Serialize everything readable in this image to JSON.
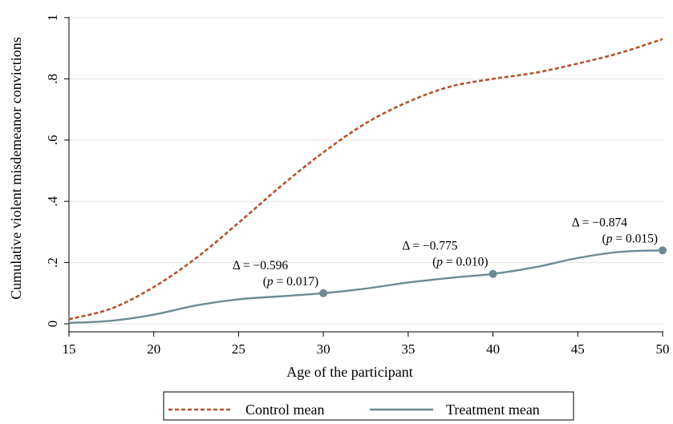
{
  "chart_data": {
    "type": "line",
    "xlabel": "Age of the participant",
    "ylabel": "Cumulative violent misdemeanor convictions",
    "xlim": [
      15,
      50
    ],
    "ylim": [
      0,
      1
    ],
    "x_ticks": [
      15,
      20,
      25,
      30,
      35,
      40,
      45,
      50
    ],
    "x_tick_labels": [
      "15",
      "20",
      "25",
      "30",
      "35",
      "40",
      "45",
      "50"
    ],
    "y_ticks": [
      0,
      0.2,
      0.4,
      0.6,
      0.8,
      1
    ],
    "y_tick_labels": [
      "0",
      ".2",
      ".4",
      ".6",
      ".8",
      "1"
    ],
    "grid": "horizontal",
    "legend_position": "bottom",
    "series": [
      {
        "name": "Control mean",
        "color": "#b5532a",
        "style": "dashed",
        "x": [
          15,
          17.5,
          20,
          22.5,
          25,
          27.5,
          30,
          32.5,
          35,
          37.5,
          40,
          42.5,
          45,
          47.5,
          50
        ],
        "y": [
          0.015,
          0.05,
          0.12,
          0.215,
          0.33,
          0.45,
          0.56,
          0.655,
          0.725,
          0.775,
          0.8,
          0.82,
          0.85,
          0.885,
          0.93
        ]
      },
      {
        "name": "Treatment mean",
        "color": "#6e8a94",
        "style": "solid",
        "x": [
          15,
          17.5,
          20,
          22.5,
          25,
          27.5,
          30,
          32.5,
          35,
          37.5,
          40,
          42.5,
          45,
          47.5,
          50
        ],
        "y": [
          0.003,
          0.01,
          0.03,
          0.06,
          0.08,
          0.09,
          0.1,
          0.115,
          0.135,
          0.15,
          0.163,
          0.185,
          0.215,
          0.235,
          0.24
        ]
      }
    ],
    "markers": [
      {
        "x": 30,
        "y": 0.1
      },
      {
        "x": 40,
        "y": 0.163
      },
      {
        "x": 50,
        "y": 0.24
      }
    ],
    "annotations": [
      {
        "delta": "Δ = −0.596",
        "p_prefix": "(",
        "p_letter": "p",
        "p_rest": " = 0.017)",
        "x": 30,
        "y": 0.1
      },
      {
        "delta": "Δ = −0.775",
        "p_prefix": "(",
        "p_letter": "p",
        "p_rest": " = 0.010)",
        "x": 40,
        "y": 0.163
      },
      {
        "delta": "Δ = −0.874",
        "p_prefix": "(",
        "p_letter": "p",
        "p_rest": " = 0.015)",
        "x": 50,
        "y": 0.24
      }
    ]
  }
}
